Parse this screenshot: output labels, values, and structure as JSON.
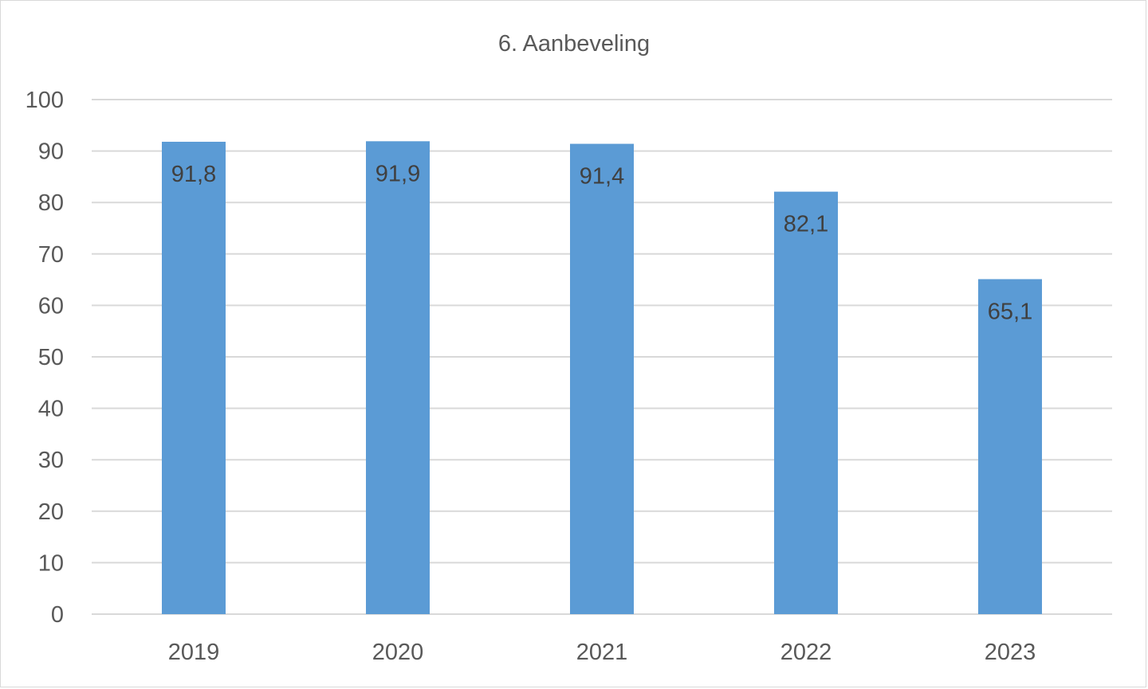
{
  "chart_data": {
    "type": "bar",
    "title": "6. Aanbeveling",
    "xlabel": "",
    "ylabel": "",
    "categories": [
      "2019",
      "2020",
      "2021",
      "2022",
      "2023"
    ],
    "values": [
      91.8,
      91.9,
      91.4,
      82.1,
      65.1
    ],
    "data_labels": [
      "91,8",
      "91,9",
      "91,4",
      "82,1",
      "65,1"
    ],
    "ylim": [
      0,
      100
    ],
    "yticks": [
      0,
      10,
      20,
      30,
      40,
      50,
      60,
      70,
      80,
      90,
      100
    ],
    "ytick_labels": [
      "0",
      "10",
      "20",
      "30",
      "40",
      "50",
      "60",
      "70",
      "80",
      "90",
      "100"
    ],
    "grid": true,
    "legend": "none",
    "bar_color": "#5b9bd5"
  }
}
